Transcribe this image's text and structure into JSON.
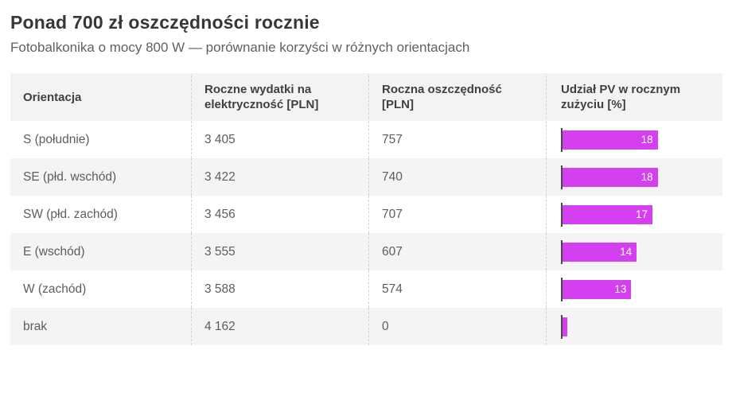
{
  "accent_color": "#d43ff0",
  "header": {
    "title": "Ponad 700 zł oszczędności rocznie",
    "subtitle": "Fotobalkonika o mocy 800 W — porównanie korzyści w różnych orientacjach"
  },
  "table": {
    "columns": [
      "Orientacja",
      "Roczne wydatki na elektryczność [PLN]",
      "Roczna oszczędność [PLN]",
      "Udział PV w rocznym zużyciu [%]"
    ],
    "rows": [
      {
        "orientation": "S (południe)",
        "expenses": "3 405",
        "savings": "757",
        "pv_share": 18
      },
      {
        "orientation": "SE (płd. wschód)",
        "expenses": "3 422",
        "savings": "740",
        "pv_share": 18
      },
      {
        "orientation": "SW (płd. zachód)",
        "expenses": "3 456",
        "savings": "707",
        "pv_share": 17
      },
      {
        "orientation": "E (wschód)",
        "expenses": "3 555",
        "savings": "607",
        "pv_share": 14
      },
      {
        "orientation": "W (zachód)",
        "expenses": "3 588",
        "savings": "574",
        "pv_share": 13
      },
      {
        "orientation": "brak",
        "expenses": "4 162",
        "savings": "0",
        "pv_share": 0
      }
    ]
  },
  "chart_data": {
    "type": "table",
    "title": "Ponad 700 zł oszczędności rocznie",
    "subtitle": "Fotobalkonika o mocy 800 W — porównanie korzyści w różnych orientacjach",
    "categories": [
      "S (południe)",
      "SE (płd. wschód)",
      "SW (płd. zachód)",
      "E (wschód)",
      "W (zachód)",
      "brak"
    ],
    "series": [
      {
        "name": "Roczne wydatki na elektryczność [PLN]",
        "values": [
          3405,
          3422,
          3456,
          3555,
          3588,
          4162
        ]
      },
      {
        "name": "Roczna oszczędność [PLN]",
        "values": [
          757,
          740,
          707,
          607,
          574,
          0
        ]
      },
      {
        "name": "Udział PV w rocznym zużyciu [%]",
        "values": [
          18,
          18,
          17,
          14,
          13,
          0
        ],
        "display": "bar",
        "bar_color": "#d43ff0",
        "axis_min": 0
      }
    ],
    "legend": false,
    "grid": false
  }
}
